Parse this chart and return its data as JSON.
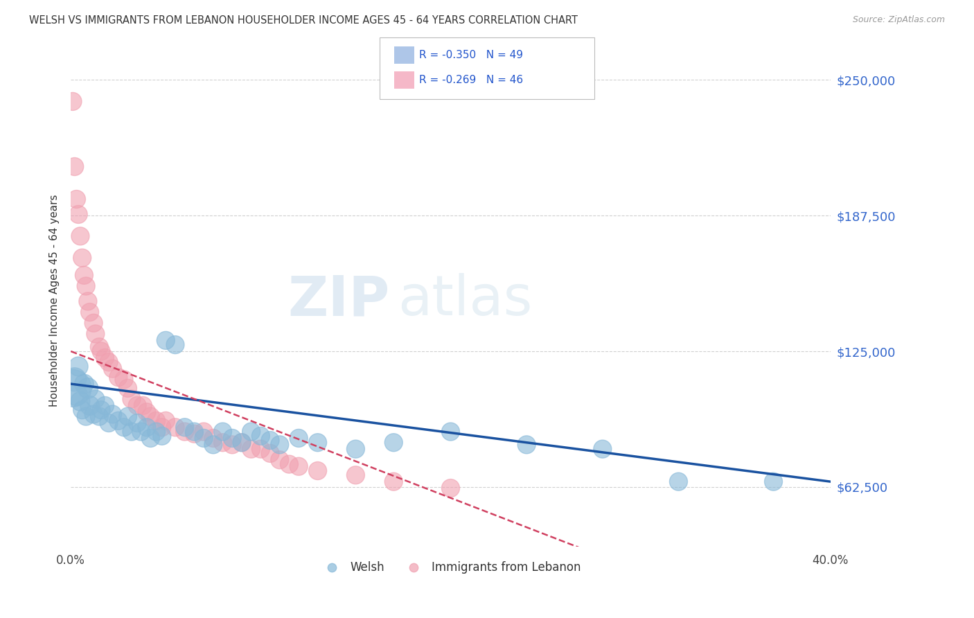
{
  "title": "WELSH VS IMMIGRANTS FROM LEBANON HOUSEHOLDER INCOME AGES 45 - 64 YEARS CORRELATION CHART",
  "source": "Source: ZipAtlas.com",
  "ylabel": "Householder Income Ages 45 - 64 years",
  "yticks": [
    62500,
    125000,
    187500,
    250000
  ],
  "ytick_labels": [
    "$62,500",
    "$125,000",
    "$187,500",
    "$250,000"
  ],
  "welsh_color": "#87b8d8",
  "lebanon_color": "#f0a0b0",
  "welsh_line_color": "#1a52a0",
  "lebanon_line_color": "#d04060",
  "background_color": "#ffffff",
  "welsh_R": "-0.350",
  "welsh_N": "49",
  "lebanon_R": "-0.269",
  "lebanon_N": "46",
  "welsh_points": [
    [
      0.001,
      108000,
      300
    ],
    [
      0.002,
      112000,
      120
    ],
    [
      0.003,
      105000,
      100
    ],
    [
      0.004,
      118000,
      80
    ],
    [
      0.005,
      102000,
      80
    ],
    [
      0.006,
      98000,
      70
    ],
    [
      0.007,
      110000,
      80
    ],
    [
      0.008,
      95000,
      70
    ],
    [
      0.009,
      108000,
      90
    ],
    [
      0.01,
      100000,
      80
    ],
    [
      0.012,
      96000,
      70
    ],
    [
      0.013,
      103000,
      70
    ],
    [
      0.015,
      95000,
      70
    ],
    [
      0.016,
      98000,
      70
    ],
    [
      0.018,
      100000,
      70
    ],
    [
      0.02,
      92000,
      70
    ],
    [
      0.022,
      96000,
      70
    ],
    [
      0.025,
      93000,
      70
    ],
    [
      0.028,
      90000,
      70
    ],
    [
      0.03,
      95000,
      70
    ],
    [
      0.032,
      88000,
      70
    ],
    [
      0.035,
      92000,
      70
    ],
    [
      0.037,
      88000,
      70
    ],
    [
      0.04,
      90000,
      70
    ],
    [
      0.042,
      85000,
      70
    ],
    [
      0.045,
      88000,
      70
    ],
    [
      0.048,
      86000,
      70
    ],
    [
      0.05,
      130000,
      70
    ],
    [
      0.055,
      128000,
      70
    ],
    [
      0.06,
      90000,
      70
    ],
    [
      0.065,
      88000,
      70
    ],
    [
      0.07,
      85000,
      70
    ],
    [
      0.075,
      82000,
      70
    ],
    [
      0.08,
      88000,
      70
    ],
    [
      0.085,
      85000,
      70
    ],
    [
      0.09,
      83000,
      70
    ],
    [
      0.095,
      88000,
      70
    ],
    [
      0.1,
      86000,
      70
    ],
    [
      0.105,
      84000,
      70
    ],
    [
      0.11,
      82000,
      70
    ],
    [
      0.12,
      85000,
      70
    ],
    [
      0.13,
      83000,
      70
    ],
    [
      0.15,
      80000,
      70
    ],
    [
      0.17,
      83000,
      70
    ],
    [
      0.2,
      88000,
      70
    ],
    [
      0.24,
      82000,
      70
    ],
    [
      0.28,
      80000,
      70
    ],
    [
      0.32,
      65000,
      70
    ],
    [
      0.37,
      65000,
      70
    ]
  ],
  "lebanon_points": [
    [
      0.001,
      240000,
      70
    ],
    [
      0.002,
      210000,
      70
    ],
    [
      0.003,
      195000,
      70
    ],
    [
      0.004,
      188000,
      70
    ],
    [
      0.005,
      178000,
      70
    ],
    [
      0.006,
      168000,
      70
    ],
    [
      0.007,
      160000,
      70
    ],
    [
      0.008,
      155000,
      70
    ],
    [
      0.009,
      148000,
      70
    ],
    [
      0.01,
      143000,
      70
    ],
    [
      0.012,
      138000,
      70
    ],
    [
      0.013,
      133000,
      70
    ],
    [
      0.015,
      127000,
      70
    ],
    [
      0.016,
      125000,
      70
    ],
    [
      0.018,
      122000,
      70
    ],
    [
      0.02,
      120000,
      70
    ],
    [
      0.022,
      117000,
      70
    ],
    [
      0.025,
      113000,
      70
    ],
    [
      0.028,
      112000,
      70
    ],
    [
      0.03,
      108000,
      70
    ],
    [
      0.032,
      103000,
      70
    ],
    [
      0.035,
      100000,
      70
    ],
    [
      0.038,
      100000,
      70
    ],
    [
      0.04,
      97000,
      70
    ],
    [
      0.042,
      95000,
      70
    ],
    [
      0.045,
      93000,
      70
    ],
    [
      0.048,
      90000,
      70
    ],
    [
      0.05,
      93000,
      70
    ],
    [
      0.055,
      90000,
      70
    ],
    [
      0.06,
      88000,
      70
    ],
    [
      0.065,
      87000,
      70
    ],
    [
      0.07,
      88000,
      70
    ],
    [
      0.075,
      85000,
      70
    ],
    [
      0.08,
      83000,
      70
    ],
    [
      0.085,
      82000,
      70
    ],
    [
      0.09,
      83000,
      70
    ],
    [
      0.095,
      80000,
      70
    ],
    [
      0.1,
      80000,
      70
    ],
    [
      0.105,
      78000,
      70
    ],
    [
      0.11,
      75000,
      70
    ],
    [
      0.115,
      73000,
      70
    ],
    [
      0.12,
      72000,
      70
    ],
    [
      0.13,
      70000,
      70
    ],
    [
      0.15,
      68000,
      70
    ],
    [
      0.17,
      65000,
      70
    ],
    [
      0.2,
      62000,
      70
    ]
  ],
  "xmin": 0.0,
  "xmax": 0.4,
  "ymin": 35000,
  "ymax": 262000
}
